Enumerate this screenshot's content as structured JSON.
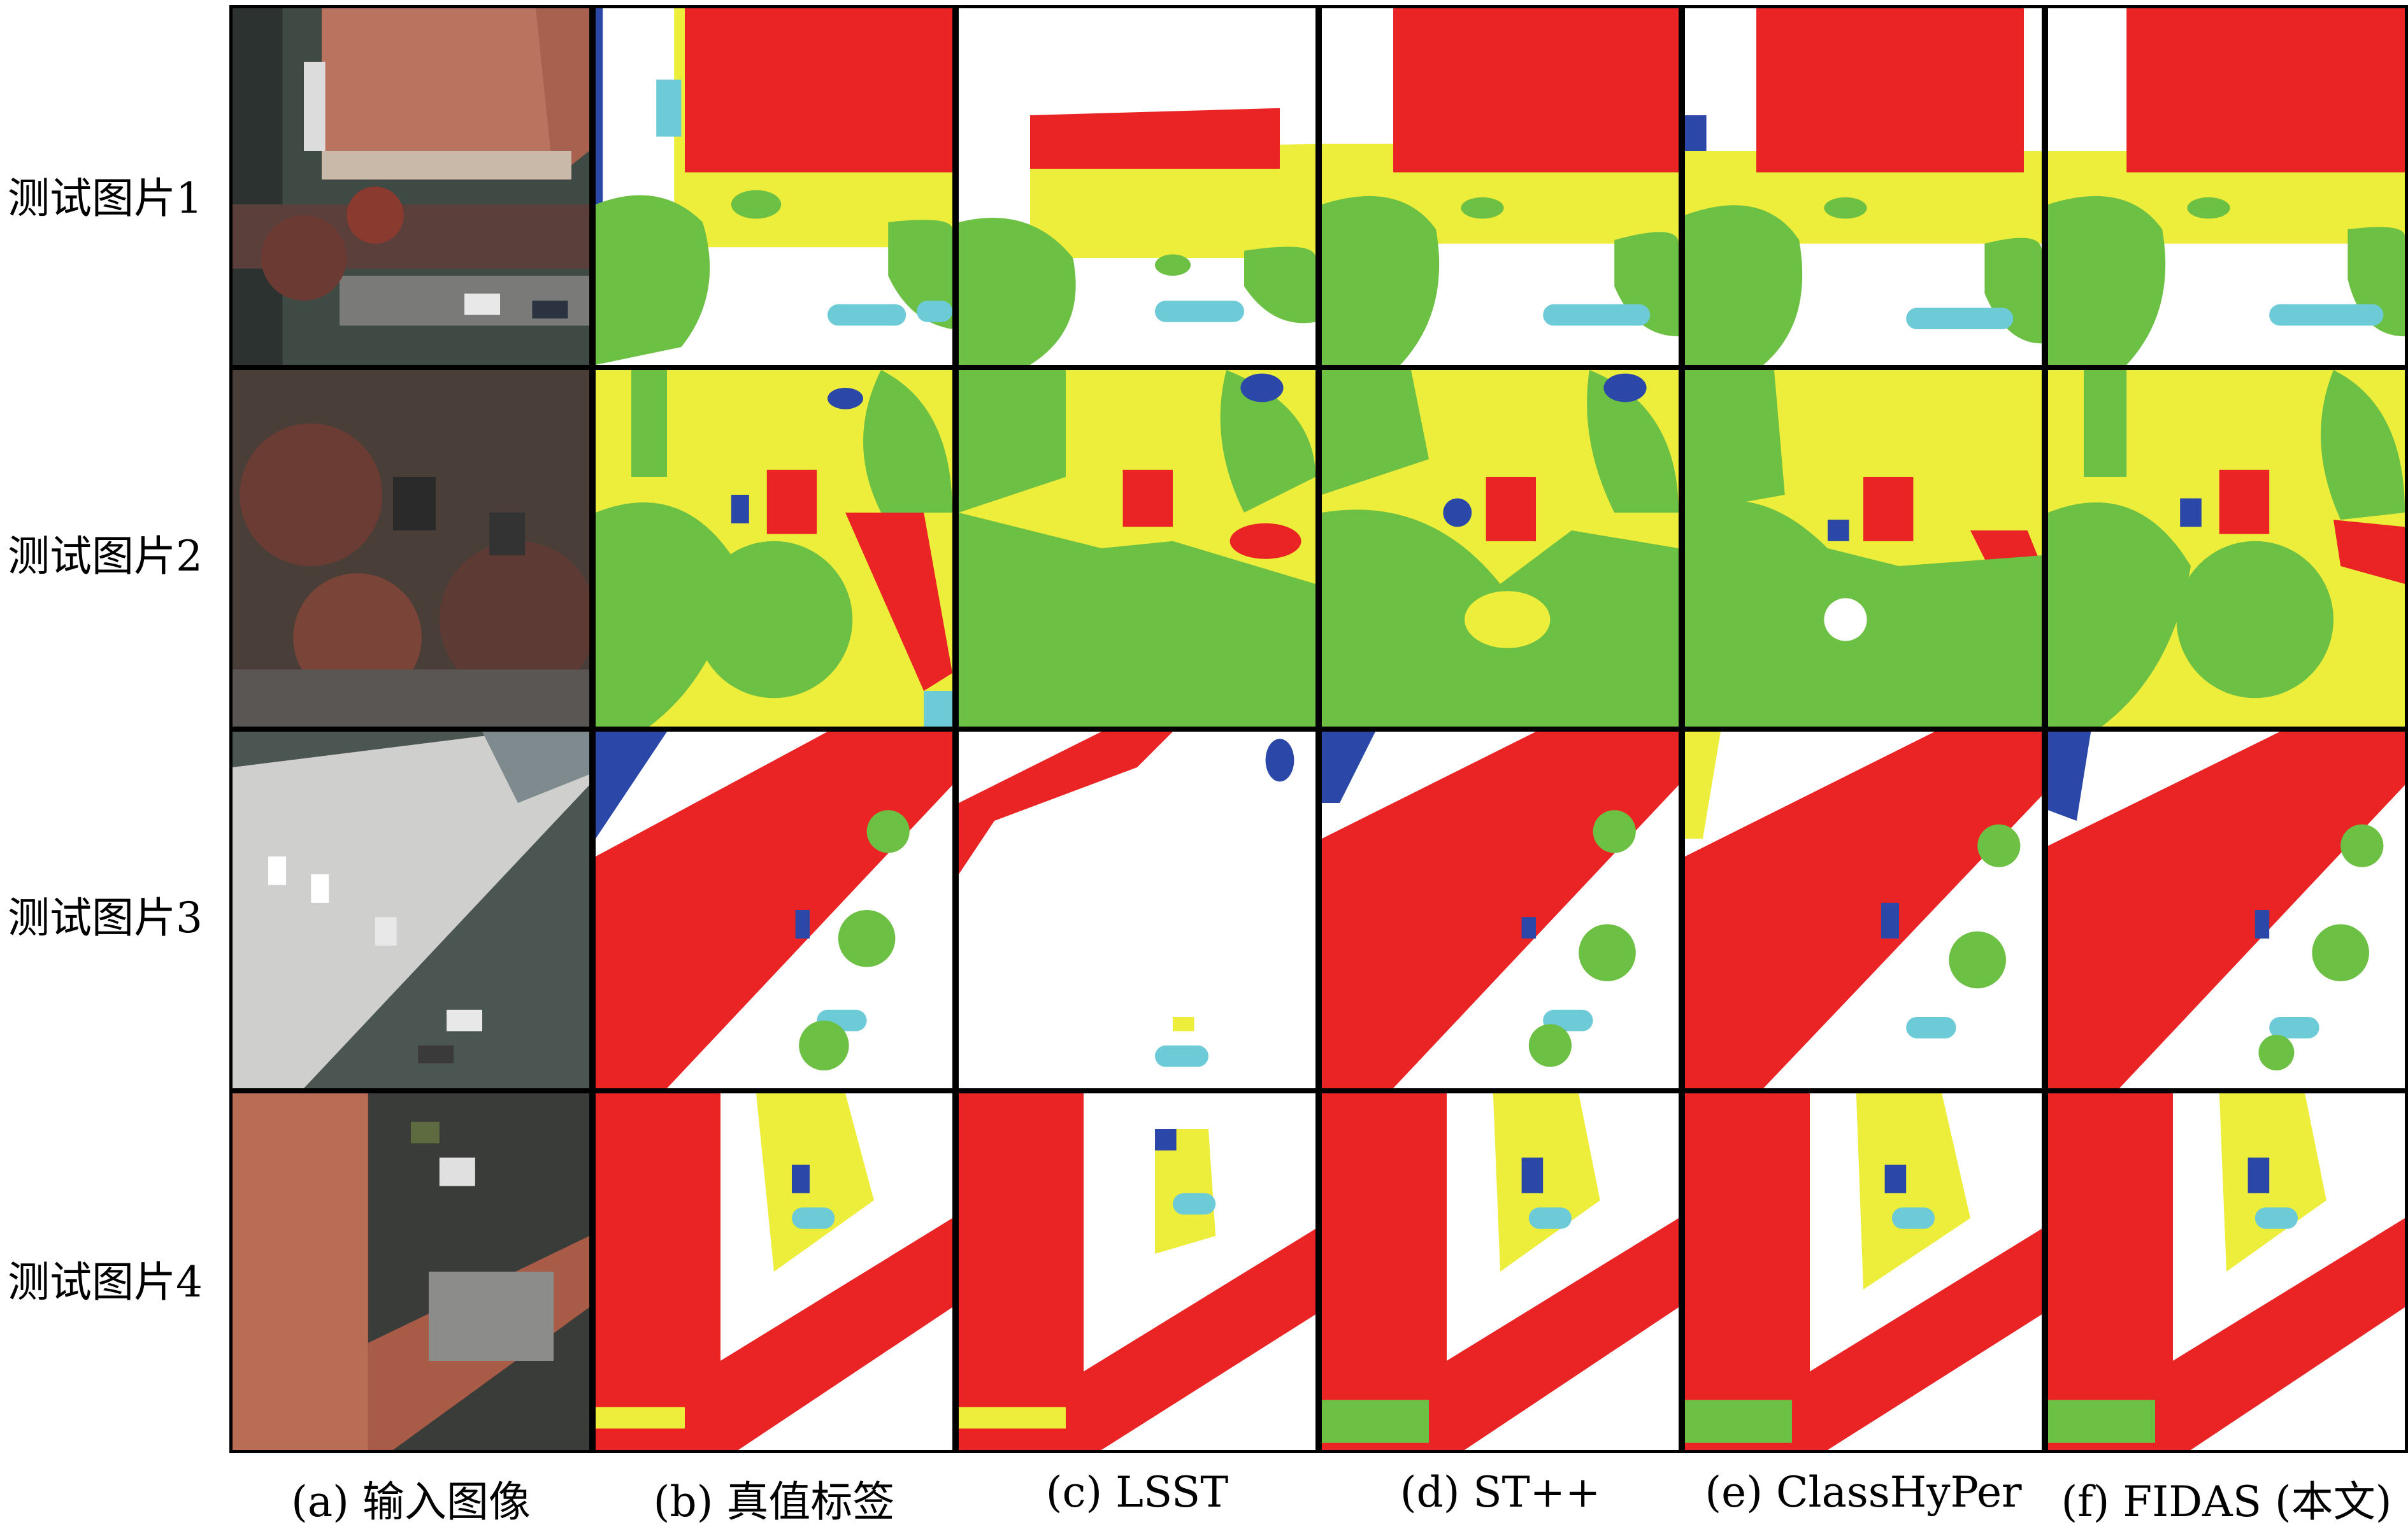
{
  "row_labels": [
    "测试图片1",
    "测试图片2",
    "测试图片3",
    "测试图片4"
  ],
  "column_labels": [
    "(a) 输入图像",
    "(b) 真值标签",
    "(c) LSST",
    "(d) ST++",
    "(e) ClassHyPer",
    "(f) FIDAS (本文)"
  ],
  "class_colors": {
    "background": "#ffffff",
    "building": "#ea2424",
    "low_vegetation": "#eded3c",
    "tree": "#6cc044",
    "car": "#6dcbd8",
    "clutter": "#2b47a8"
  }
}
